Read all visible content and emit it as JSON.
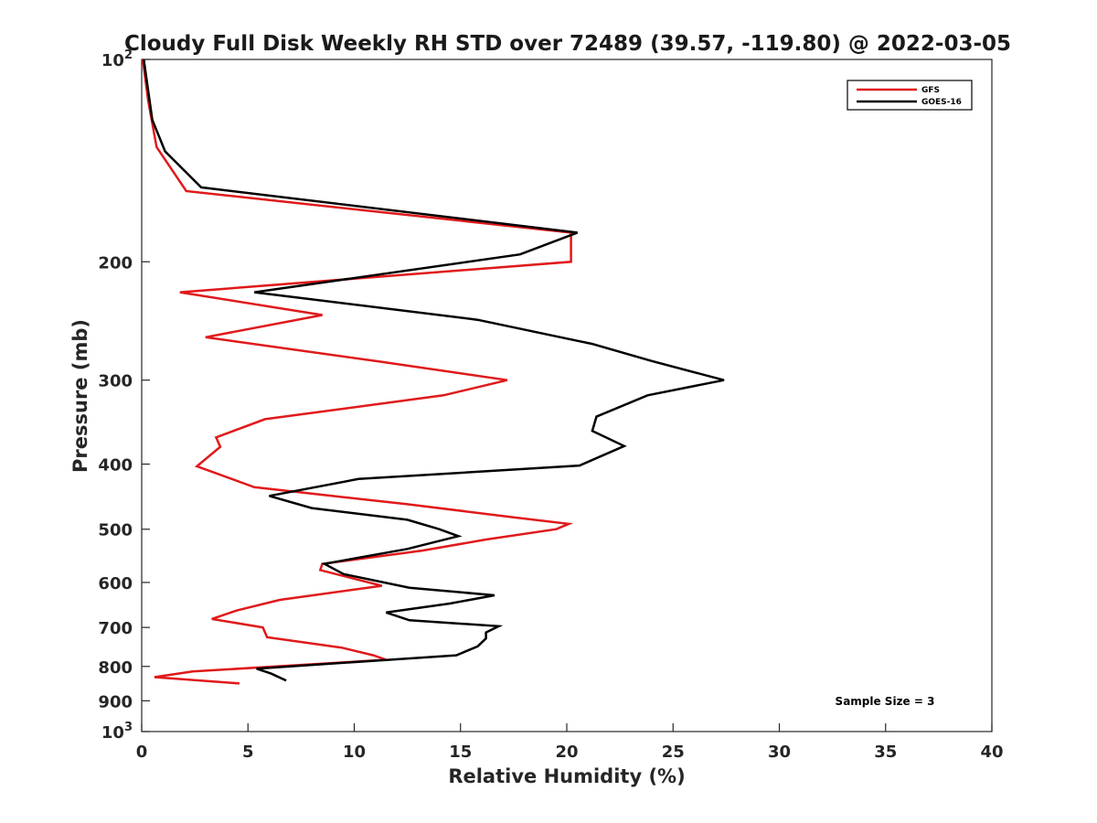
{
  "chart_data": {
    "type": "line",
    "title": "Cloudy Full Disk Weekly RH STD over 72489 (39.57, -119.80) @ 2022-03-05",
    "xlabel": "Relative Humidity (%)",
    "ylabel": "Pressure (mb)",
    "xlim": [
      0,
      40
    ],
    "ylim": [
      100,
      1000
    ],
    "yscale": "log",
    "y_reversed": true,
    "grid": false,
    "legend_position": "top-right",
    "x_ticks": [
      "0",
      "5",
      "10",
      "15",
      "20",
      "25",
      "30",
      "35",
      "40"
    ],
    "x_tick_values": [
      0,
      5,
      10,
      15,
      20,
      25,
      30,
      35,
      40
    ],
    "y_ticks": [
      {
        "value": 100,
        "base": "10",
        "exp": "2"
      },
      {
        "value": 200,
        "label": "200"
      },
      {
        "value": 300,
        "label": "300"
      },
      {
        "value": 400,
        "label": "400"
      },
      {
        "value": 500,
        "label": "500"
      },
      {
        "value": 600,
        "label": "600"
      },
      {
        "value": 700,
        "label": "700"
      },
      {
        "value": 800,
        "label": "800"
      },
      {
        "value": 900,
        "label": "900"
      },
      {
        "value": 1000,
        "base": "10",
        "exp": "3"
      }
    ],
    "annotation": "Sample Size = 3",
    "series": [
      {
        "name": "GFS",
        "color": "#e0191b",
        "points": [
          [
            0.05,
            100
          ],
          [
            0.3,
            115
          ],
          [
            0.7,
            135
          ],
          [
            2.1,
            157
          ],
          [
            20.2,
            181
          ],
          [
            20.2,
            200
          ],
          [
            1.8,
            222
          ],
          [
            8.5,
            240
          ],
          [
            3.0,
            259
          ],
          [
            11,
            281
          ],
          [
            17.2,
            300
          ],
          [
            14.2,
            316
          ],
          [
            5.8,
            343
          ],
          [
            3.5,
            365
          ],
          [
            3.7,
            377
          ],
          [
            2.6,
            403
          ],
          [
            5.3,
            433
          ],
          [
            12.5,
            459
          ],
          [
            17.5,
            480
          ],
          [
            20.1,
            491
          ],
          [
            19.5,
            500
          ],
          [
            16.2,
            518
          ],
          [
            13.2,
            538
          ],
          [
            8.5,
            563
          ],
          [
            8.4,
            575
          ],
          [
            11.3,
            607
          ],
          [
            6.5,
            637
          ],
          [
            4.5,
            660
          ],
          [
            3.3,
            680
          ],
          [
            5.7,
            700
          ],
          [
            5.9,
            724
          ],
          [
            9.4,
            750
          ],
          [
            10.9,
            770
          ],
          [
            11.5,
            782
          ],
          [
            2.4,
            814
          ],
          [
            0.6,
            830
          ],
          [
            4.6,
            848
          ]
        ]
      },
      {
        "name": "GOES-16",
        "color": "#000000",
        "points": [
          [
            0.1,
            100
          ],
          [
            0.5,
            123
          ],
          [
            1.1,
            137
          ],
          [
            2.8,
            155
          ],
          [
            20.5,
            181
          ],
          [
            17.8,
            195
          ],
          [
            5.3,
            222
          ],
          [
            15.8,
            244
          ],
          [
            21.2,
            265
          ],
          [
            24.0,
            281
          ],
          [
            27.4,
            300
          ],
          [
            23.8,
            316
          ],
          [
            21.4,
            340
          ],
          [
            21.2,
            357
          ],
          [
            22.7,
            376
          ],
          [
            20.6,
            402
          ],
          [
            10.2,
            421
          ],
          [
            6.0,
            446
          ],
          [
            8.0,
            465
          ],
          [
            12.5,
            484
          ],
          [
            14.0,
            500
          ],
          [
            14.9,
            512
          ],
          [
            12.5,
            535
          ],
          [
            8.6,
            563
          ],
          [
            9.5,
            583
          ],
          [
            12.6,
            611
          ],
          [
            16.6,
            627
          ],
          [
            14.5,
            645
          ],
          [
            11.5,
            665
          ],
          [
            12.6,
            683
          ],
          [
            16.8,
            697
          ],
          [
            16.2,
            712
          ],
          [
            16.2,
            727
          ],
          [
            15.8,
            747
          ],
          [
            14.8,
            770
          ],
          [
            5.4,
            806
          ],
          [
            6.1,
            820
          ],
          [
            6.8,
            840
          ]
        ]
      }
    ]
  }
}
